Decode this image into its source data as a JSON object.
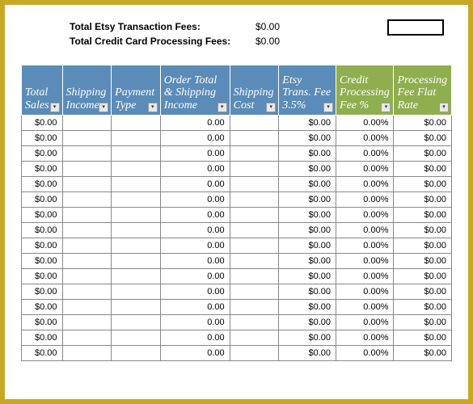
{
  "summary": {
    "rows": [
      {
        "label": "Total Etsy Transaction Fees:",
        "value": "$0.00"
      },
      {
        "label": "Total Credit Card Processing Fees:",
        "value": "$0.00"
      }
    ]
  },
  "table": {
    "columns": [
      {
        "label": "Total Sales",
        "class": "th-blue",
        "width": "col-1"
      },
      {
        "label": "Shipping Income",
        "class": "th-blue",
        "width": "col-2"
      },
      {
        "label": "Payment Type",
        "class": "th-blue",
        "width": "col-3"
      },
      {
        "label": "Order Total & Shipping Income",
        "class": "th-blue",
        "width": "col-4"
      },
      {
        "label": "Shipping Cost",
        "class": "th-blue",
        "width": "col-5"
      },
      {
        "label": "Etsy Trans. Fee 3.5%",
        "class": "th-blue",
        "width": "col-6"
      },
      {
        "label": "Credit Processing Fee %",
        "class": "th-green",
        "width": "col-7"
      },
      {
        "label": "Processing Fee Flat Rate",
        "class": "th-green",
        "width": "col-8"
      }
    ],
    "rows": [
      [
        "$0.00",
        "",
        "",
        "0.00",
        "",
        "$0.00",
        "0.00%",
        "$0.00"
      ],
      [
        "$0.00",
        "",
        "",
        "0.00",
        "",
        "$0.00",
        "0.00%",
        "$0.00"
      ],
      [
        "$0.00",
        "",
        "",
        "0.00",
        "",
        "$0.00",
        "0.00%",
        "$0.00"
      ],
      [
        "$0.00",
        "",
        "",
        "0.00",
        "",
        "$0.00",
        "0.00%",
        "$0.00"
      ],
      [
        "$0.00",
        "",
        "",
        "0.00",
        "",
        "$0.00",
        "0.00%",
        "$0.00"
      ],
      [
        "$0.00",
        "",
        "",
        "0.00",
        "",
        "$0.00",
        "0.00%",
        "$0.00"
      ],
      [
        "$0.00",
        "",
        "",
        "0.00",
        "",
        "$0.00",
        "0.00%",
        "$0.00"
      ],
      [
        "$0.00",
        "",
        "",
        "0.00",
        "",
        "$0.00",
        "0.00%",
        "$0.00"
      ],
      [
        "$0.00",
        "",
        "",
        "0.00",
        "",
        "$0.00",
        "0.00%",
        "$0.00"
      ],
      [
        "$0.00",
        "",
        "",
        "0.00",
        "",
        "$0.00",
        "0.00%",
        "$0.00"
      ],
      [
        "$0.00",
        "",
        "",
        "0.00",
        "",
        "$0.00",
        "0.00%",
        "$0.00"
      ],
      [
        "$0.00",
        "",
        "",
        "0.00",
        "",
        "$0.00",
        "0.00%",
        "$0.00"
      ],
      [
        "$0.00",
        "",
        "",
        "0.00",
        "",
        "$0.00",
        "0.00%",
        "$0.00"
      ],
      [
        "$0.00",
        "",
        "",
        "0.00",
        "",
        "$0.00",
        "0.00%",
        "$0.00"
      ],
      [
        "$0.00",
        "",
        "",
        "0.00",
        "",
        "$0.00",
        "0.00%",
        "$0.00"
      ],
      [
        "$0.00",
        "",
        "",
        "0.00",
        "",
        "$0.00",
        "0.00%",
        "$0.00"
      ]
    ]
  },
  "filter_glyph": "▾"
}
